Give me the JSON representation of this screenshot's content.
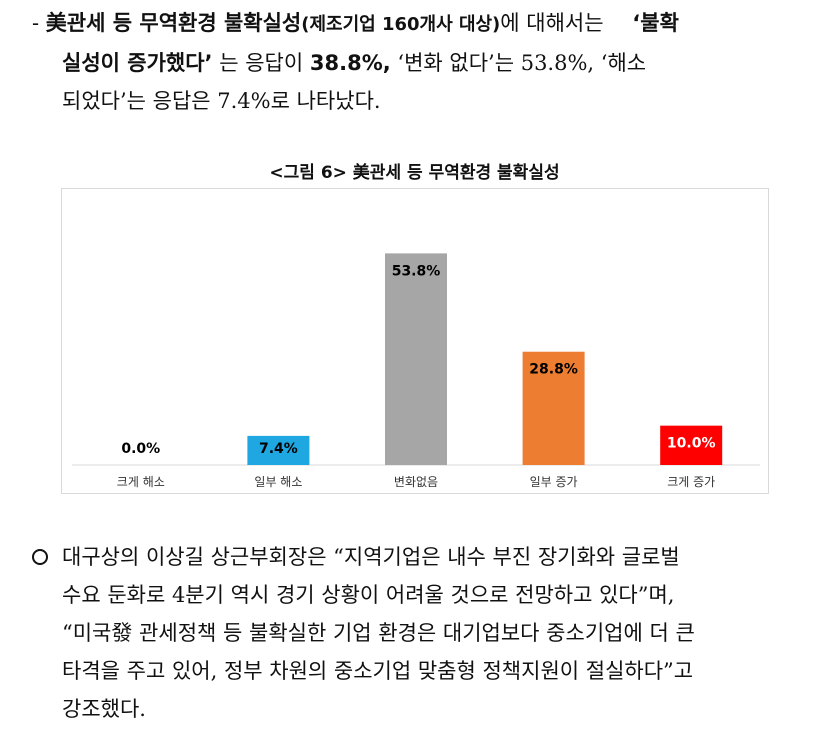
{
  "paragraph1": {
    "dash": "-",
    "line1_bold": "美관세 등 무역환경 불확실성",
    "line1_paren": "(제조기업 160개사 대상)",
    "line1_rest": "에 대해서는",
    "line1_bold2": "‘불확",
    "line2_bold": "실성이 증가했다’",
    "line2_rest1": "는 응답이",
    "line2_bold2": "38.8%,",
    "line2_rest2": "‘변화 없다’는 53.8%, ‘해소",
    "line3": "되었다’는 응답은 7.4%로 나타났다."
  },
  "figure": {
    "title": "<그림 6> 美관세 등 무역환경 불확실성"
  },
  "chart_data": {
    "type": "bar",
    "categories": [
      "크게 해소",
      "일부 해소",
      "변화없음",
      "일부 증가",
      "크게 증가"
    ],
    "values": [
      0.0,
      7.4,
      53.8,
      28.8,
      10.0
    ],
    "value_labels": [
      "0.0%",
      "7.4%",
      "53.8%",
      "28.8%",
      "10.0%"
    ],
    "colors": [
      "#1ea7e1",
      "#1ea7e1",
      "#a6a6a6",
      "#ed7d31",
      "#ff0000"
    ],
    "label_colors": [
      "#000000",
      "#000000",
      "#000000",
      "#000000",
      "#ffffff"
    ],
    "ylim": [
      0,
      60
    ],
    "grid": false,
    "legend": "none"
  },
  "paragraph2": {
    "line1": "대구상의 이상길 상근부회장은 “지역기업은 내수 부진 장기화와 글로벌",
    "line2": "수요 둔화로 4분기 역시 경기 상황이 어려울 것으로 전망하고 있다”며,",
    "line3": "“미국發 관세정책 등 불확실한 기업 환경은 대기업보다 중소기업에 더 큰",
    "line4": "타격을 주고 있어,  정부 차원의 중소기업 맞춤형 정책지원이 절실하다”고",
    "line5": "강조했다."
  }
}
